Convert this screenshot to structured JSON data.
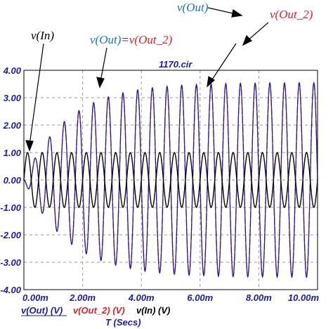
{
  "chart_data": {
    "type": "line",
    "title": "1170.cir",
    "xlabel": "T (Secs)",
    "ylabel": "",
    "xlim": [
      0,
      0.01
    ],
    "ylim": [
      -4,
      4
    ],
    "grid": true,
    "x_ticks": [
      "0.00m",
      "2.00m",
      "4.00m",
      "6.00m",
      "8.00m",
      "10.00m"
    ],
    "y_ticks": [
      "4.00",
      "3.00",
      "2.00",
      "1.00",
      "0.00",
      "-1.00",
      "-2.00",
      "-3.00",
      "-4.00"
    ],
    "series": [
      {
        "name": "v(In) (V)",
        "color": "#000000",
        "waveform": {
          "shape": "sine",
          "amplitude": 1.0,
          "frequency_hz": 2000,
          "phase_deg": 0
        }
      },
      {
        "name": "v(Out) (V)",
        "color": "#1a1aa6",
        "waveform": {
          "shape": "damped-start sine",
          "steady_amplitude": 3.55,
          "frequency_hz": 2000,
          "phase_deg": 180,
          "time_constant_s": 0.0015
        }
      },
      {
        "name": "v(Out_2) (V)",
        "color": "#e0202a",
        "waveform": {
          "shape": "damped-start sine",
          "steady_amplitude": 3.55,
          "frequency_hz": 2000,
          "phase_deg": 180,
          "time_constant_s": 0.0015
        }
      }
    ],
    "annotations": {
      "vin": "v(In)",
      "vout_eq_left": "v(Out)",
      "vout_eq_mid": "=",
      "vout_eq_right": "v(Out_2)",
      "vout_top": "v(Out)",
      "vout2_top": "v(Out_2)"
    },
    "legend": {
      "placement": "bottom-left",
      "items": [
        "v(Out) (V)",
        "v(Out_2) (V)",
        "v(In) (V)"
      ]
    }
  }
}
